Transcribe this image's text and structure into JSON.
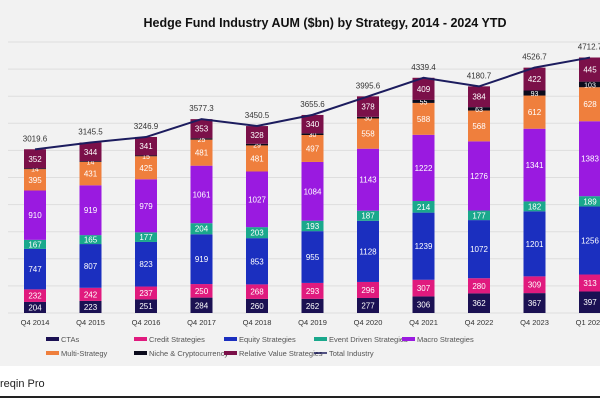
{
  "source_text": "reqin Pro",
  "chart_data": {
    "type": "bar",
    "stacked": true,
    "title": "Hedge Fund Industry AUM ($bn) by Strategy, 2014 - 2024 YTD",
    "categories": [
      "Q4 2014",
      "Q4 2015",
      "Q4 2016",
      "Q4 2017",
      "Q4 2018",
      "Q4 2019",
      "Q4 2020",
      "Q4 2021",
      "Q4 2022",
      "Q4 2023",
      "Q1 2024"
    ],
    "ylim": [
      0,
      5000
    ],
    "grid": true,
    "legend_position": "bottom",
    "series": [
      {
        "name": "CTAs",
        "color": "#1b1153",
        "values": [
          204,
          223,
          251,
          284,
          260,
          262,
          277,
          306,
          362,
          367,
          397
        ]
      },
      {
        "name": "Credit Strategies",
        "color": "#e01a7e",
        "values": [
          232,
          242,
          237,
          250,
          268,
          293,
          296,
          307,
          280,
          309,
          313
        ]
      },
      {
        "name": "Equity Strategies",
        "color": "#1b2fbf",
        "values": [
          747,
          807,
          823,
          919,
          853,
          955,
          1128,
          1239,
          1072,
          1201,
          1256
        ]
      },
      {
        "name": "Event Driven Strategies",
        "color": "#1aa88c",
        "values": [
          167,
          165,
          177,
          204,
          203,
          193,
          187,
          214,
          177,
          182,
          189
        ]
      },
      {
        "name": "Macro Strategies",
        "color": "#9a1ae0",
        "values": [
          910,
          919,
          979,
          1061,
          1027,
          1084,
          1143,
          1222,
          1276,
          1341,
          1383
        ]
      },
      {
        "name": "Multi-Strategy",
        "color": "#ef7f3d",
        "values": [
          395,
          431,
          425,
          481,
          481,
          497,
          558,
          588,
          568,
          612,
          628
        ]
      },
      {
        "name": "Niche & Cryptocurrency",
        "color": "#0b0b1c",
        "values": [
          14,
          14,
          15,
          25,
          29,
          30,
          30,
          55,
          63,
          93,
          103
        ]
      },
      {
        "name": "Relative Value Strategies",
        "color": "#7b1049",
        "values": [
          352,
          344,
          341,
          353,
          328,
          340,
          378,
          409,
          384,
          422,
          445
        ]
      }
    ],
    "line_series": {
      "name": "Total Industry",
      "color": "#1c1c5e",
      "values": [
        3019.6,
        3145.5,
        3246.9,
        3577.3,
        3450.5,
        3655.6,
        3995.6,
        4339.4,
        4180.7,
        4526.7,
        4712.7
      ]
    }
  }
}
